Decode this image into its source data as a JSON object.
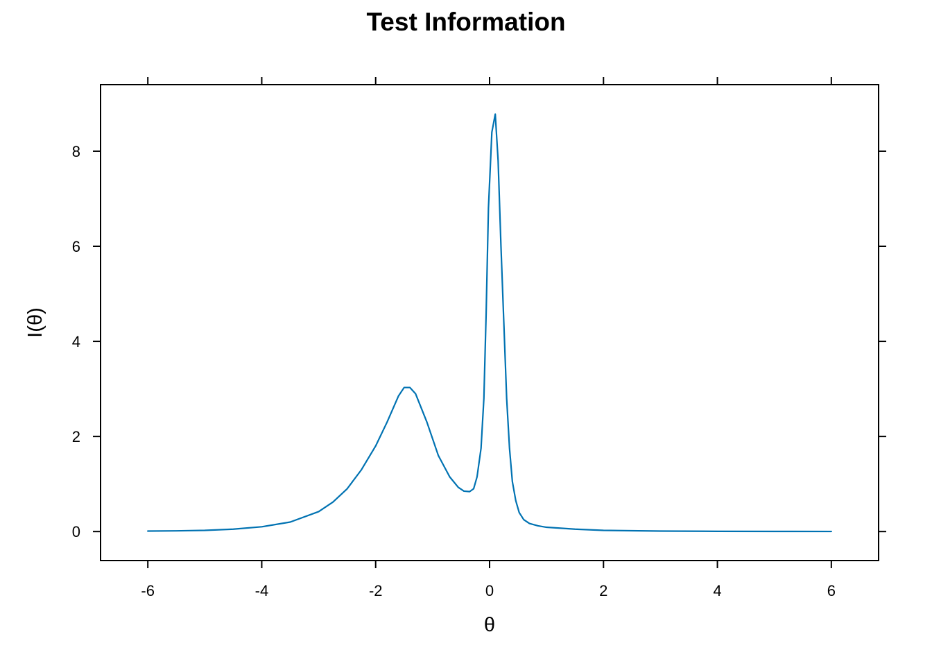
{
  "chart_data": {
    "type": "line",
    "title": "Test Information",
    "xlabel": "θ",
    "ylabel": "I(θ)",
    "xlim": [
      -6.83,
      6.83
    ],
    "ylim": [
      -0.61,
      9.4
    ],
    "x_ticks": [
      -6,
      -4,
      -2,
      0,
      2,
      4,
      6
    ],
    "x_tick_labels": [
      "-6",
      "-4",
      "-2",
      "0",
      "2",
      "4",
      "6"
    ],
    "y_ticks": [
      0,
      2,
      4,
      6,
      8
    ],
    "y_tick_labels": [
      "0",
      "2",
      "4",
      "6",
      "8"
    ],
    "ticks_on_all_sides": true,
    "grid": false,
    "legend": "none",
    "series": [
      {
        "color": "#0072B2",
        "points": [
          [
            -6.0,
            0.01
          ],
          [
            -5.5,
            0.015
          ],
          [
            -5.0,
            0.025
          ],
          [
            -4.5,
            0.05
          ],
          [
            -4.0,
            0.1
          ],
          [
            -3.5,
            0.2
          ],
          [
            -3.0,
            0.42
          ],
          [
            -2.75,
            0.62
          ],
          [
            -2.5,
            0.9
          ],
          [
            -2.25,
            1.3
          ],
          [
            -2.0,
            1.8
          ],
          [
            -1.8,
            2.3
          ],
          [
            -1.6,
            2.85
          ],
          [
            -1.5,
            3.03
          ],
          [
            -1.4,
            3.03
          ],
          [
            -1.3,
            2.9
          ],
          [
            -1.1,
            2.3
          ],
          [
            -0.9,
            1.6
          ],
          [
            -0.7,
            1.15
          ],
          [
            -0.55,
            0.93
          ],
          [
            -0.45,
            0.85
          ],
          [
            -0.35,
            0.84
          ],
          [
            -0.28,
            0.9
          ],
          [
            -0.22,
            1.15
          ],
          [
            -0.15,
            1.75
          ],
          [
            -0.1,
            2.8
          ],
          [
            -0.06,
            4.6
          ],
          [
            -0.02,
            6.8
          ],
          [
            0.04,
            8.4
          ],
          [
            0.1,
            8.78
          ],
          [
            0.15,
            7.8
          ],
          [
            0.2,
            6.0
          ],
          [
            0.25,
            4.4
          ],
          [
            0.3,
            2.8
          ],
          [
            0.35,
            1.75
          ],
          [
            0.4,
            1.05
          ],
          [
            0.46,
            0.65
          ],
          [
            0.52,
            0.4
          ],
          [
            0.6,
            0.25
          ],
          [
            0.7,
            0.17
          ],
          [
            0.85,
            0.12
          ],
          [
            1.0,
            0.09
          ],
          [
            1.5,
            0.05
          ],
          [
            2.0,
            0.025
          ],
          [
            3.0,
            0.01
          ],
          [
            4.0,
            0.005
          ],
          [
            5.0,
            0.003
          ],
          [
            6.0,
            0.002
          ]
        ]
      }
    ]
  }
}
